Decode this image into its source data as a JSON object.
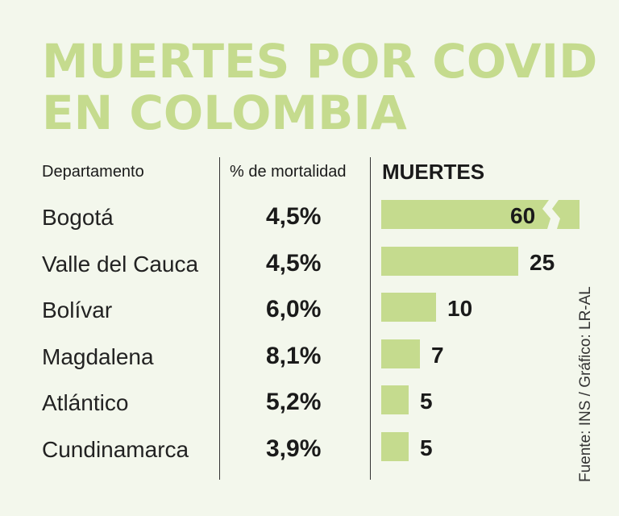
{
  "title_lines": [
    "MUERTES POR COVID",
    "EN COLOMBIA"
  ],
  "headers": {
    "dept": "Departamento",
    "pct": "% de mortalidad",
    "muertes": "MUERTES"
  },
  "source": "Fuente: INS / Gráfico: LR-AL",
  "colors": {
    "bar": "#c5db8e",
    "background": "#f3f7ec",
    "title": "#c5db8e"
  },
  "chart_data": {
    "type": "bar",
    "orientation": "horizontal",
    "categories": [
      "Bogotá",
      "Valle del Cauca",
      "Bolívar",
      "Magdalena",
      "Atlántico",
      "Cundinamarca"
    ],
    "percent_labels": [
      "4,5%",
      "4,5%",
      "6,0%",
      "8,1%",
      "5,2%",
      "3,9%"
    ],
    "values": [
      60,
      25,
      10,
      7,
      5,
      5
    ],
    "value_labels": [
      "60",
      "25",
      "10",
      "7",
      "5",
      "5"
    ],
    "axis_break_on_first": true
  }
}
